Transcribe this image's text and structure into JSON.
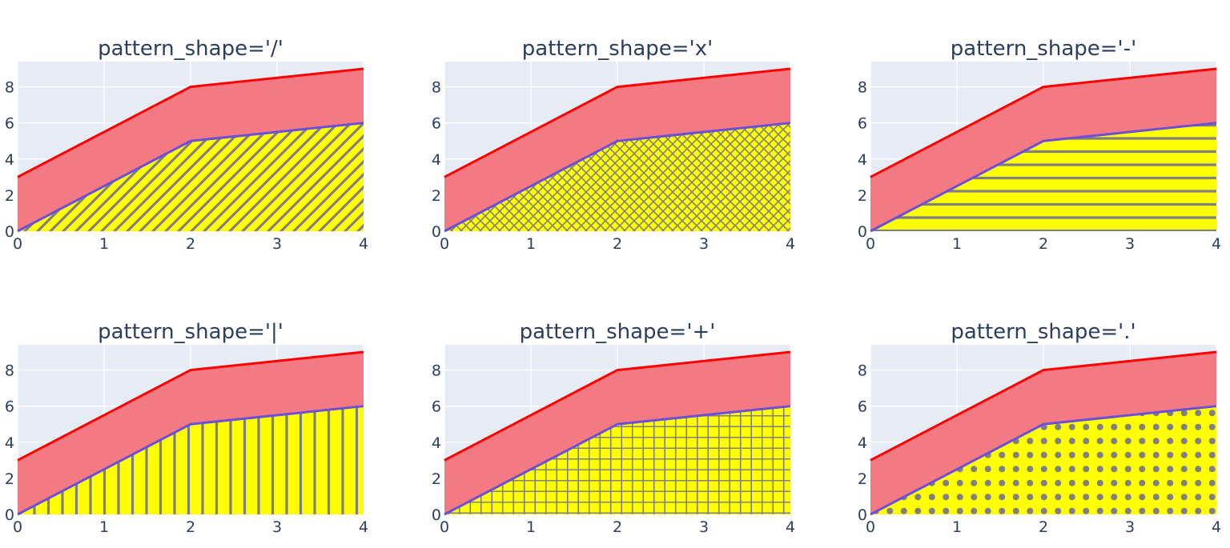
{
  "colors": {
    "plot_bg": "#e5ecf6",
    "grid": "#ffffff",
    "text": "#2a3f5f",
    "upper_line": "#ff0000",
    "upper_fill": "#f37a82",
    "lower_line": "#6a50d8",
    "pattern_bg": "#ffff00",
    "pattern_fg": "#808080"
  },
  "chart_data": [
    {
      "type": "area",
      "title": "pattern_shape='/'",
      "pattern_shape": "/",
      "x": [
        0,
        2,
        4
      ],
      "series": [
        {
          "values": [
            0,
            5,
            6
          ],
          "fill": "tozeroy",
          "fill_pattern": "/"
        },
        {
          "values": [
            3,
            8,
            9
          ],
          "fill": "tonexty"
        }
      ],
      "xlim": [
        0,
        4
      ],
      "ylim": [
        0,
        9.4
      ],
      "xticks": [
        0,
        1,
        2,
        3,
        4
      ],
      "yticks": [
        0,
        2,
        4,
        6,
        8
      ],
      "grid": true
    },
    {
      "type": "area",
      "title": "pattern_shape='x'",
      "pattern_shape": "x",
      "x": [
        0,
        2,
        4
      ],
      "series": [
        {
          "values": [
            0,
            5,
            6
          ],
          "fill": "tozeroy",
          "fill_pattern": "x"
        },
        {
          "values": [
            3,
            8,
            9
          ],
          "fill": "tonexty"
        }
      ],
      "xlim": [
        0,
        4
      ],
      "ylim": [
        0,
        9.4
      ],
      "xticks": [
        0,
        1,
        2,
        3,
        4
      ],
      "yticks": [
        0,
        2,
        4,
        6,
        8
      ],
      "grid": true
    },
    {
      "type": "area",
      "title": "pattern_shape='-'",
      "pattern_shape": "-",
      "x": [
        0,
        2,
        4
      ],
      "series": [
        {
          "values": [
            0,
            5,
            6
          ],
          "fill": "tozeroy",
          "fill_pattern": "-"
        },
        {
          "values": [
            3,
            8,
            9
          ],
          "fill": "tonexty"
        }
      ],
      "xlim": [
        0,
        4
      ],
      "ylim": [
        0,
        9.4
      ],
      "xticks": [
        0,
        1,
        2,
        3,
        4
      ],
      "yticks": [
        0,
        2,
        4,
        6,
        8
      ],
      "grid": true
    },
    {
      "type": "area",
      "title": "pattern_shape='|'",
      "pattern_shape": "|",
      "x": [
        0,
        2,
        4
      ],
      "series": [
        {
          "values": [
            0,
            5,
            6
          ],
          "fill": "tozeroy",
          "fill_pattern": "|"
        },
        {
          "values": [
            3,
            8,
            9
          ],
          "fill": "tonexty"
        }
      ],
      "xlim": [
        0,
        4
      ],
      "ylim": [
        0,
        9.4
      ],
      "xticks": [
        0,
        1,
        2,
        3,
        4
      ],
      "yticks": [
        0,
        2,
        4,
        6,
        8
      ],
      "grid": true
    },
    {
      "type": "area",
      "title": "pattern_shape='+'",
      "pattern_shape": "+",
      "x": [
        0,
        2,
        4
      ],
      "series": [
        {
          "values": [
            0,
            5,
            6
          ],
          "fill": "tozeroy",
          "fill_pattern": "+"
        },
        {
          "values": [
            3,
            8,
            9
          ],
          "fill": "tonexty"
        }
      ],
      "xlim": [
        0,
        4
      ],
      "ylim": [
        0,
        9.4
      ],
      "xticks": [
        0,
        1,
        2,
        3,
        4
      ],
      "yticks": [
        0,
        2,
        4,
        6,
        8
      ],
      "grid": true
    },
    {
      "type": "area",
      "title": "pattern_shape='.'",
      "pattern_shape": ".",
      "x": [
        0,
        2,
        4
      ],
      "series": [
        {
          "values": [
            0,
            5,
            6
          ],
          "fill": "tozeroy",
          "fill_pattern": "."
        },
        {
          "values": [
            3,
            8,
            9
          ],
          "fill": "tonexty"
        }
      ],
      "xlim": [
        0,
        4
      ],
      "ylim": [
        0,
        9.4
      ],
      "xticks": [
        0,
        1,
        2,
        3,
        4
      ],
      "yticks": [
        0,
        2,
        4,
        6,
        8
      ],
      "grid": true
    }
  ]
}
